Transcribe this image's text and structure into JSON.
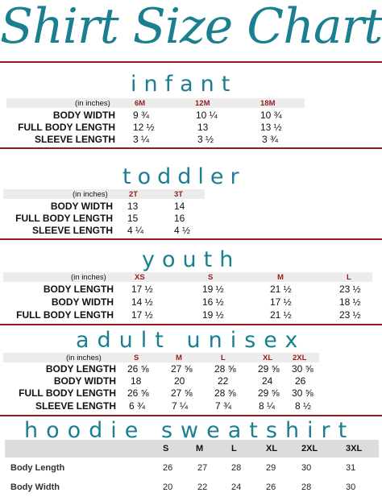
{
  "title": "Shirt Size Chart",
  "sections": {
    "infant": {
      "title": "infant",
      "units": "(in inches)",
      "sizes": [
        "6M",
        "12M",
        "18M"
      ],
      "rows": [
        {
          "label": "BODY WIDTH",
          "values": [
            "9 ¾",
            "10 ¼",
            "10 ¾"
          ]
        },
        {
          "label": "FULL BODY LENGTH",
          "values": [
            "12 ½",
            "13",
            "13 ½"
          ]
        },
        {
          "label": "SLEEVE LENGTH",
          "values": [
            "3 ¼",
            "3 ½",
            "3 ¾"
          ]
        }
      ]
    },
    "toddler": {
      "title": "toddler",
      "units": "(in inches)",
      "sizes": [
        "2T",
        "3T"
      ],
      "rows": [
        {
          "label": "BODY WIDTH",
          "values": [
            "13",
            "14"
          ]
        },
        {
          "label": "FULL BODY LENGTH",
          "values": [
            "15",
            "16"
          ]
        },
        {
          "label": "SLEEVE LENGTH",
          "values": [
            "4 ¼",
            "4 ½"
          ]
        }
      ]
    },
    "youth": {
      "title": "youth",
      "units": "(in inches)",
      "sizes": [
        "XS",
        "S",
        "M",
        "L"
      ],
      "rows": [
        {
          "label": "BODY LENGTH",
          "values": [
            "17 ½",
            "19 ½",
            "21 ½",
            "23 ½"
          ]
        },
        {
          "label": "BODY WIDTH",
          "values": [
            "14 ½",
            "16 ½",
            "17 ½",
            "18 ½"
          ]
        },
        {
          "label": "FULL BODY LENGTH",
          "values": [
            "17 ½",
            "19 ½",
            "21 ½",
            "23 ½"
          ]
        }
      ]
    },
    "adult": {
      "title": "adult unisex",
      "units": "(in inches)",
      "sizes": [
        "S",
        "M",
        "L",
        "XL",
        "2XL"
      ],
      "rows": [
        {
          "label": "BODY LENGTH",
          "values": [
            "26 ⅝",
            "27 ⅝",
            "28 ⅝",
            "29 ⅝",
            "30 ⅝"
          ]
        },
        {
          "label": "BODY WIDTH",
          "values": [
            "18",
            "20",
            "22",
            "24",
            "26"
          ]
        },
        {
          "label": "FULL BODY LENGTH",
          "values": [
            "26 ⅝",
            "27 ⅝",
            "28 ⅝",
            "29 ⅝",
            "30 ⅝"
          ]
        },
        {
          "label": "SLEEVE LENGTH",
          "values": [
            "6 ¾",
            "7 ¼",
            "7 ¾",
            "8 ¼",
            "8 ½"
          ]
        }
      ]
    },
    "hoodie": {
      "title": "hoodie sweatshirt",
      "sizes": [
        "S",
        "M",
        "L",
        "XL",
        "2XL",
        "3XL"
      ],
      "rows": [
        {
          "label": "Body Length",
          "values": [
            "26",
            "27",
            "28",
            "29",
            "30",
            "31"
          ]
        },
        {
          "label": "Body Width",
          "values": [
            "20",
            "22",
            "24",
            "26",
            "28",
            "30"
          ]
        }
      ]
    }
  },
  "colors": {
    "title": "#1a7f8f",
    "rule": "#9b1b1b",
    "header": "#9b1b1b"
  }
}
